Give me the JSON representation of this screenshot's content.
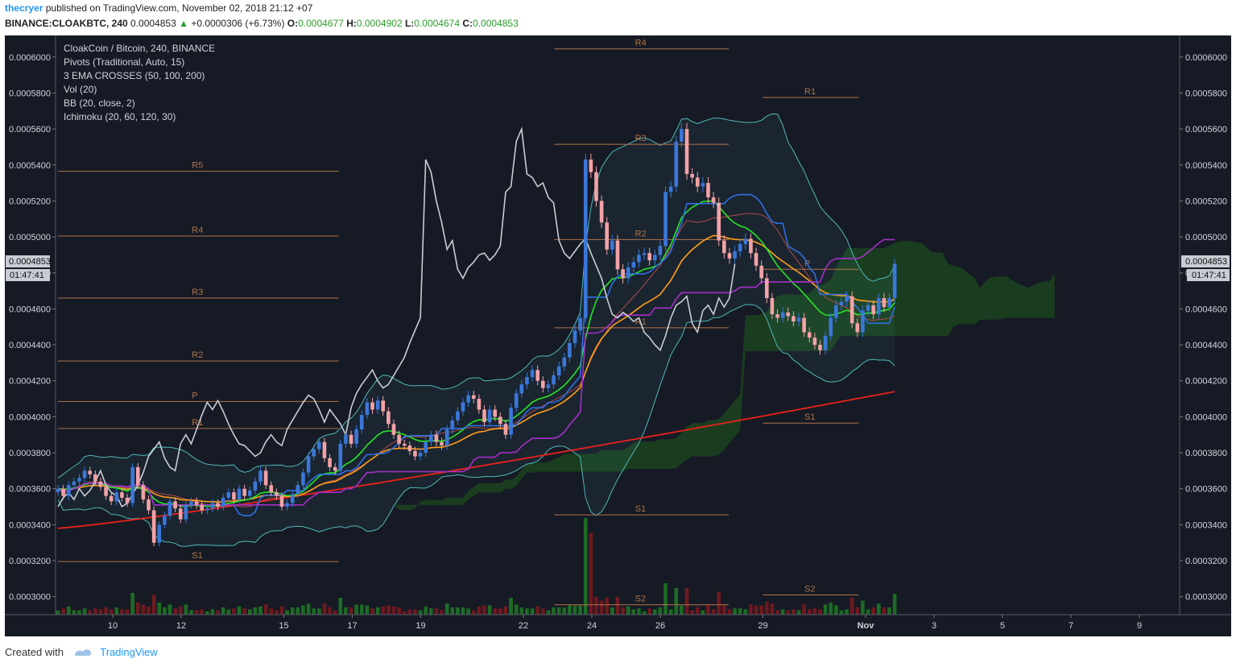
{
  "header": {
    "user": "thecryer",
    "published": "published on TradingView.com, November 02, 2018 21:12 +07",
    "symbol": "BINANCE:CLOAKBTC, 240",
    "last": "0.0004853",
    "change": "+0.0000306 (+6.73%)",
    "open_label": "O:",
    "open": "0.0004677",
    "high_label": "H:",
    "high": "0.0004902",
    "low_label": "L:",
    "low": "0.0004674",
    "close_label": "C:",
    "close": "0.0004853"
  },
  "legend": {
    "title": "CloakCoin / Bitcoin, 240, BINANCE",
    "lines": [
      "Pivots (Traditional, Auto, 15)",
      "3 EMA CROSSES (50, 100, 200)",
      "Vol (20)",
      "BB (20, close, 2)",
      "Ichimoku (20, 60, 120, 30)"
    ]
  },
  "price_tag": {
    "value": "0.0004853",
    "timer": "01:47:41"
  },
  "footer": {
    "created_with": "Created with",
    "brand": "TradingView"
  },
  "colors": {
    "background": "#161a25",
    "up": "#3b77d9",
    "down": "#f2a2a6",
    "pivot": "#b0744a",
    "ema50": "#26e626",
    "ema100": "#ff9f1a",
    "ema200": "#e8231b",
    "bb": "#4fb8b8",
    "cloud_green": "#1d4a1d",
    "cloud_red": "#3b1a22",
    "vol_up": "#1e7a26",
    "vol_down": "#7e1a1f"
  },
  "chart_data": {
    "type": "candlestick",
    "title": "CloakCoin / Bitcoin, 240, BINANCE",
    "ylim": [
      0.00029,
      0.000612
    ],
    "y_ticks": [
      "0.0003000",
      "0.0003200",
      "0.0003400",
      "0.0003600",
      "0.0003800",
      "0.0004000",
      "0.0004200",
      "0.0004400",
      "0.0004600",
      "0.0004800",
      "0.0005000",
      "0.0005200",
      "0.0005400",
      "0.0005600",
      "0.0005800",
      "0.0006000"
    ],
    "x_ticks": [
      {
        "label": "10",
        "day": 10
      },
      {
        "label": "12",
        "day": 12
      },
      {
        "label": "15",
        "day": 15
      },
      {
        "label": "17",
        "day": 17
      },
      {
        "label": "19",
        "day": 19
      },
      {
        "label": "22",
        "day": 22
      },
      {
        "label": "24",
        "day": 24
      },
      {
        "label": "26",
        "day": 26
      },
      {
        "label": "29",
        "day": 29
      },
      {
        "label": "Nov",
        "day": 32
      },
      {
        "label": "3",
        "day": 34
      },
      {
        "label": "5",
        "day": 36
      },
      {
        "label": "7",
        "day": 38
      },
      {
        "label": "9",
        "day": 40
      }
    ],
    "close": [
      0.00036,
      0.000356,
      0.000362,
      0.000364,
      0.000366,
      0.00037,
      0.000368,
      0.000364,
      0.000361,
      0.000356,
      0.000353,
      0.000358,
      0.000355,
      0.000352,
      0.000372,
      0.000362,
      0.000354,
      0.000348,
      0.00033,
      0.00034,
      0.000345,
      0.000353,
      0.000349,
      0.000343,
      0.000351,
      0.000353,
      0.000351,
      0.000348,
      0.000349,
      0.000352,
      0.00035,
      0.000355,
      0.000358,
      0.000354,
      0.00036,
      0.000356,
      0.000359,
      0.000364,
      0.00037,
      0.000362,
      0.000358,
      0.000356,
      0.00035,
      0.000352,
      0.000357,
      0.000362,
      0.000369,
      0.000378,
      0.000382,
      0.000386,
      0.000377,
      0.000372,
      0.00037,
      0.000385,
      0.00039,
      0.000385,
      0.000393,
      0.000401,
      0.000408,
      0.000404,
      0.000409,
      0.000403,
      0.000396,
      0.00039,
      0.000385,
      0.000384,
      0.000381,
      0.000378,
      0.00038,
      0.000386,
      0.00039,
      0.000386,
      0.000384,
      0.000393,
      0.000398,
      0.000403,
      0.000408,
      0.000412,
      0.00041,
      0.000404,
      0.000397,
      0.000404,
      0.0004,
      0.000396,
      0.00039,
      0.000405,
      0.000413,
      0.000418,
      0.000422,
      0.000426,
      0.00042,
      0.000416,
      0.000418,
      0.000423,
      0.000428,
      0.000433,
      0.000441,
      0.000448,
      0.000455,
      0.000543,
      0.000536,
      0.00052,
      0.000508,
      0.000493,
      0.000498,
      0.000482,
      0.000477,
      0.000483,
      0.000486,
      0.00049,
      0.000491,
      0.000487,
      0.00049,
      0.000495,
      0.000525,
      0.000528,
      0.000553,
      0.00056,
      0.000535,
      0.000533,
      0.000528,
      0.00053,
      0.000522,
      0.000519,
      0.000498,
      0.000491,
      0.000488,
      0.000492,
      0.000496,
      0.000499,
      0.000491,
      0.000484,
      0.000477,
      0.000466,
      0.000457,
      0.000455,
      0.000458,
      0.000456,
      0.000453,
      0.000455,
      0.000447,
      0.000444,
      0.00044,
      0.000437,
      0.000445,
      0.000455,
      0.000462,
      0.000464,
      0.000467,
      0.000452,
      0.000447,
      0.000459,
      0.000462,
      0.000457,
      0.000466,
      0.000461,
      0.000466,
      0.000485
    ],
    "pivot_periods": [
      {
        "from_day": 8.4,
        "to_day": 16.6,
        "labels": [
          "S1",
          "P",
          "R1",
          "R2",
          "R3",
          "R4",
          "R5"
        ],
        "values": [
          0.0003195,
          0.0004085,
          0.0003935,
          0.000431,
          0.000466,
          0.0005005,
          0.0005365
        ]
      },
      {
        "from_day": 22.9,
        "to_day": 28.0,
        "labels": [
          "S2",
          "S1",
          "R1",
          "R2",
          "R3",
          "R4"
        ],
        "values": [
          0.0002955,
          0.0003455,
          0.0004495,
          0.0004985,
          0.0005515,
          0.0006045
        ]
      },
      {
        "from_day": 29.0,
        "to_day": 31.8,
        "labels": [
          "S2",
          "S1",
          "P",
          "R1"
        ],
        "values": [
          0.000301,
          0.0003965,
          0.000482,
          0.0005775
        ]
      }
    ],
    "series": [
      {
        "name": "EMA 50"
      },
      {
        "name": "EMA 100"
      },
      {
        "name": "EMA 200"
      },
      {
        "name": "BB (20, close, 2)"
      },
      {
        "name": "Ichimoku (20, 60, 120, 30)"
      },
      {
        "name": "Vol (20)"
      }
    ]
  }
}
